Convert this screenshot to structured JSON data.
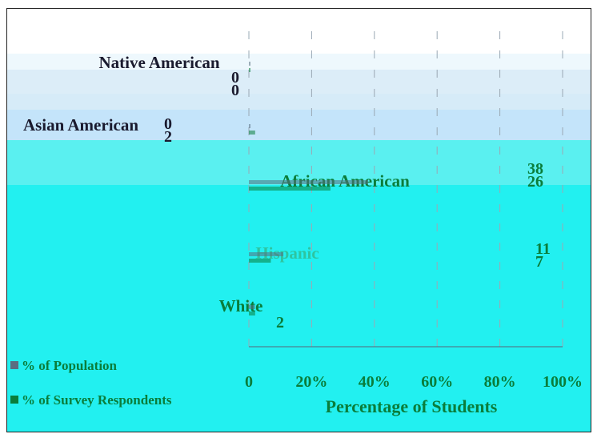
{
  "chart_data": {
    "type": "bar",
    "orientation": "horizontal",
    "categories": [
      "Native American",
      "Asian American",
      "African American",
      "Hispanic",
      "White"
    ],
    "series": [
      {
        "name": "% of Population",
        "values": [
          0,
          0,
          38,
          11,
          2
        ]
      },
      {
        "name": "% of Survey Respondents",
        "values": [
          0,
          2,
          26,
          7,
          2
        ]
      }
    ],
    "data_labels": {
      "Native American": [
        "0",
        "0"
      ],
      "Asian American": [
        "0",
        "2"
      ],
      "African American": [
        "38",
        "26"
      ],
      "Hispanic": [
        "11",
        "7"
      ],
      "White": [
        "2",
        ""
      ]
    },
    "xlabel": "Percentage of Students",
    "ylabel": "",
    "xlim": [
      0,
      100
    ],
    "xticks": [
      "0",
      "20%",
      "40%",
      "60%",
      "80%",
      "100%"
    ],
    "grid": true,
    "legend_position": "bottom-left",
    "colors": {
      "cyan": "#22f0f0",
      "pale_blue": "#c4e4fa",
      "green_text": "#0a7d3a",
      "dark_text": "#1a1a2e",
      "bar_dark": "#5a6e80"
    }
  }
}
